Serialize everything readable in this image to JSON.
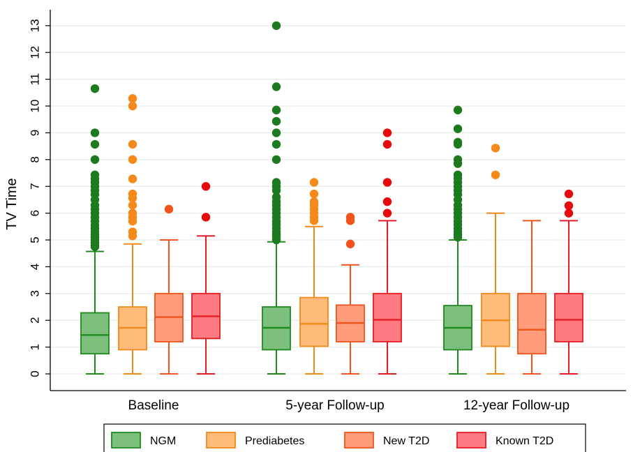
{
  "chart_data": {
    "type": "boxplot",
    "ylabel": "TV Time",
    "ylim": [
      -0.4,
      13.6
    ],
    "yticks": [
      0,
      1,
      2,
      3,
      4,
      5,
      6,
      7,
      8,
      9,
      10,
      11,
      12,
      13
    ],
    "grid": "horizontal",
    "legend_position": "bottom",
    "groups": [
      "Baseline",
      "5-year Follow-up",
      "12-year Follow-up"
    ],
    "series": [
      {
        "name": "NGM",
        "fill": "#7dbf7d",
        "stroke": "#1e8a1e",
        "outlier": "#1e7a1e",
        "boxes": [
          {
            "whisker_low": 0,
            "q1": 0.75,
            "median": 1.45,
            "q3": 2.28,
            "whisker_high": 4.57,
            "outliers": [
              4.75,
              4.82,
              4.9,
              5.0,
              5.1,
              5.2,
              5.3,
              5.43,
              5.55,
              5.7,
              5.85,
              6.0,
              6.15,
              6.3,
              6.5,
              6.7,
              6.85,
              7.0,
              7.15,
              7.28,
              7.43,
              8.0,
              8.57,
              9.0,
              10.65
            ]
          },
          {
            "whisker_low": 0,
            "q1": 0.9,
            "median": 1.72,
            "q3": 2.5,
            "whisker_high": 4.93,
            "outliers": [
              5.0,
              5.1,
              5.2,
              5.3,
              5.43,
              5.57,
              5.7,
              5.85,
              6.0,
              6.15,
              6.3,
              6.43,
              6.6,
              6.85,
              7.0,
              7.15,
              8.0,
              8.57,
              9.0,
              9.43,
              9.85,
              10.72,
              13.0
            ]
          },
          {
            "whisker_low": 0,
            "q1": 0.9,
            "median": 1.72,
            "q3": 2.55,
            "whisker_high": 5.0,
            "outliers": [
              5.1,
              5.2,
              5.3,
              5.43,
              5.57,
              5.7,
              5.85,
              6.0,
              6.15,
              6.3,
              6.5,
              6.7,
              6.85,
              7.0,
              7.15,
              7.3,
              7.43,
              7.85,
              8.0,
              8.57,
              8.65,
              9.15,
              9.85
            ]
          }
        ]
      },
      {
        "name": "Prediabetes",
        "fill": "#ffbb7a",
        "stroke": "#f08a1c",
        "outlier": "#f58a1c",
        "boxes": [
          {
            "whisker_low": 0,
            "q1": 0.9,
            "median": 1.72,
            "q3": 2.5,
            "whisker_high": 4.85,
            "outliers": [
              5.15,
              5.3,
              5.7,
              5.85,
              6.0,
              6.3,
              6.57,
              6.72,
              7.28,
              8.0,
              8.57,
              10.0,
              10.28
            ]
          },
          {
            "whisker_low": 0,
            "q1": 1.03,
            "median": 1.87,
            "q3": 2.85,
            "whisker_high": 5.5,
            "outliers": [
              5.72,
              5.85,
              6.0,
              6.15,
              6.3,
              6.43,
              6.72,
              7.15
            ]
          },
          {
            "whisker_low": 0,
            "q1": 1.03,
            "median": 2.0,
            "q3": 3.0,
            "whisker_high": 6.0,
            "outliers": [
              7.43,
              8.43
            ]
          }
        ]
      },
      {
        "name": "New T2D",
        "fill": "#ff9c7c",
        "stroke": "#f0541c",
        "outlier": "#f0541c",
        "boxes": [
          {
            "whisker_low": 0,
            "q1": 1.2,
            "median": 2.12,
            "q3": 3.0,
            "whisker_high": 5.0,
            "outliers": [
              6.15
            ]
          },
          {
            "whisker_low": 0,
            "q1": 1.2,
            "median": 1.9,
            "q3": 2.57,
            "whisker_high": 4.07,
            "outliers": [
              4.85,
              5.72,
              5.85
            ]
          },
          {
            "whisker_low": 0,
            "q1": 0.75,
            "median": 1.65,
            "q3": 3.0,
            "whisker_high": 5.72,
            "outliers": []
          }
        ]
      },
      {
        "name": "Known T2D",
        "fill": "#ff7b82",
        "stroke": "#e81c24",
        "outlier": "#e80a0a",
        "boxes": [
          {
            "whisker_low": 0,
            "q1": 1.32,
            "median": 2.15,
            "q3": 3.0,
            "whisker_high": 5.15,
            "outliers": [
              5.85,
              7.0
            ]
          },
          {
            "whisker_low": 0,
            "q1": 1.2,
            "median": 2.02,
            "q3": 3.0,
            "whisker_high": 5.72,
            "outliers": [
              6.0,
              6.43,
              7.15,
              8.57,
              9.0
            ]
          },
          {
            "whisker_low": 0,
            "q1": 1.2,
            "median": 2.02,
            "q3": 3.0,
            "whisker_high": 5.72,
            "outliers": [
              6.0,
              6.28,
              6.72
            ]
          }
        ]
      }
    ]
  }
}
